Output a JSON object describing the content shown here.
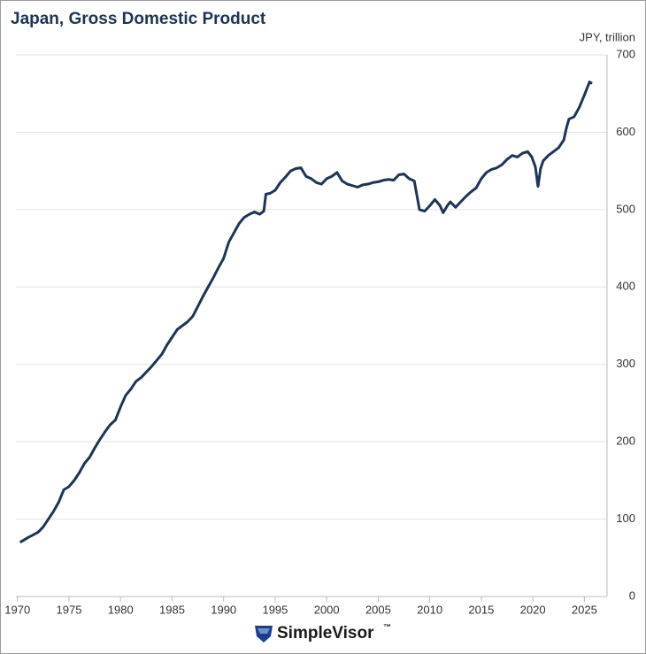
{
  "chart_data": {
    "type": "line",
    "title": "Japan, Gross Domestic Product",
    "y_label": "JPY, trillion",
    "x": [
      1970.25,
      1971,
      1972,
      1972.5,
      1973,
      1973.5,
      1974,
      1974.5,
      1975,
      1975.5,
      1976,
      1976.5,
      1977,
      1977.5,
      1978,
      1978.5,
      1979,
      1979.5,
      1980,
      1980.5,
      1981,
      1981.5,
      1982,
      1982.5,
      1983,
      1983.5,
      1984,
      1984.5,
      1985,
      1985.5,
      1986,
      1986.5,
      1987,
      1987.5,
      1988,
      1988.5,
      1989,
      1989.5,
      1990,
      1990.5,
      1991,
      1991.5,
      1992,
      1992.5,
      1993,
      1993.5,
      1993.9,
      1994.1,
      1994.5,
      1995,
      1995.5,
      1996,
      1996.5,
      1997,
      1997.5,
      1998,
      1998.5,
      1999,
      1999.5,
      2000,
      2000.5,
      2001,
      2001.5,
      2002,
      2002.5,
      2003,
      2003.5,
      2004,
      2004.5,
      2005,
      2005.5,
      2006,
      2006.5,
      2007,
      2007.5,
      2008,
      2008.5,
      2009,
      2009.5,
      2010,
      2010.5,
      2011,
      2011.3,
      2011.7,
      2012,
      2012.5,
      2013,
      2013.5,
      2014,
      2014.5,
      2015,
      2015.5,
      2016,
      2016.5,
      2017,
      2017.5,
      2018,
      2018.5,
      2019,
      2019.5,
      2019.9,
      2020.25,
      2020.5,
      2020.75,
      2021,
      2021.5,
      2022,
      2022.5,
      2023,
      2023.25,
      2023.5,
      2024,
      2024.5,
      2025,
      2025.5,
      2025.75
    ],
    "values": [
      70,
      76,
      83,
      90,
      100,
      110,
      122,
      138,
      142,
      150,
      160,
      172,
      180,
      192,
      203,
      213,
      222,
      228,
      245,
      260,
      268,
      278,
      283,
      290,
      297,
      305,
      313,
      325,
      335,
      345,
      350,
      355,
      362,
      375,
      388,
      400,
      412,
      425,
      437,
      458,
      470,
      482,
      490,
      494,
      497,
      494,
      498,
      520,
      521,
      525,
      535,
      542,
      550,
      553,
      554,
      543,
      540,
      535,
      533,
      540,
      543,
      548,
      537,
      533,
      531,
      529,
      532,
      533,
      535,
      536,
      538,
      539,
      538,
      545,
      546,
      540,
      537,
      500,
      498,
      505,
      513,
      505,
      496,
      505,
      510,
      503,
      510,
      517,
      523,
      528,
      540,
      548,
      552,
      554,
      558,
      565,
      570,
      568,
      573,
      575,
      568,
      555,
      530,
      553,
      563,
      570,
      575,
      580,
      590,
      605,
      617,
      620,
      632,
      648,
      665,
      663
    ],
    "color": "#1c3557",
    "xlim": [
      1969.85,
      2027.2
    ],
    "ylim": [
      0,
      700
    ],
    "xticks": [
      1970,
      1975,
      1980,
      1985,
      1990,
      1995,
      2000,
      2005,
      2010,
      2015,
      2020,
      2025
    ],
    "yticks": [
      0,
      100,
      200,
      300,
      400,
      500,
      600,
      700
    ],
    "grid": true,
    "brand": "SimpleVisor",
    "trademark": "™"
  }
}
